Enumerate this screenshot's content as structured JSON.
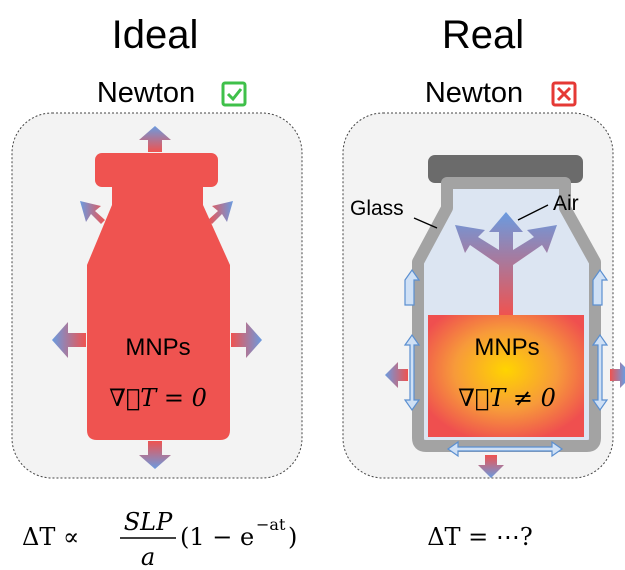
{
  "left": {
    "title": "Ideal",
    "subtitle": "Newton",
    "label": "MNPs",
    "gradient": "∇⃗T = 0",
    "formula": {
      "lhs": "ΔT ∝",
      "numerator": "SLP",
      "denominator": "a",
      "rhs": "(1 − e",
      "exponent": "−at",
      "close": ")"
    }
  },
  "right": {
    "title": "Real",
    "subtitle": "Newton",
    "glass": "Glass",
    "air": "Air",
    "label": "MNPs",
    "gradient": "∇⃗T ≠ 0",
    "formula": "ΔT = ⋯?"
  }
}
